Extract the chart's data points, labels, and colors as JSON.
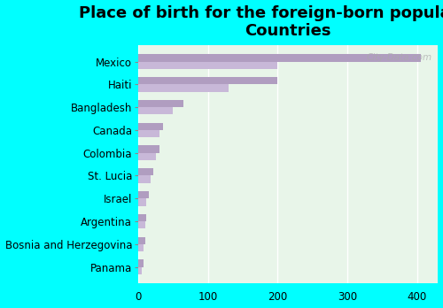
{
  "title": "Place of birth for the foreign-born population -\nCountries",
  "categories": [
    "Mexico",
    "Haiti",
    "Bangladesh",
    "Canada",
    "Colombia",
    "St. Lucia",
    "Israel",
    "Argentina",
    "Bosnia and Herzegovina",
    "Panama"
  ],
  "values1": [
    405,
    200,
    65,
    35,
    30,
    22,
    15,
    12,
    10,
    7
  ],
  "values2": [
    200,
    130,
    50,
    30,
    25,
    18,
    12,
    10,
    8,
    5
  ],
  "bar_color1": "#b09dc0",
  "bar_color2": "#c8b8d8",
  "background_color": "#00ffff",
  "plot_bg_color": "#e8f5e9",
  "xlim": [
    0,
    430
  ],
  "xticks": [
    0,
    100,
    200,
    300,
    400
  ],
  "title_fontsize": 13,
  "label_fontsize": 8.5,
  "watermark": "City-Data.com"
}
